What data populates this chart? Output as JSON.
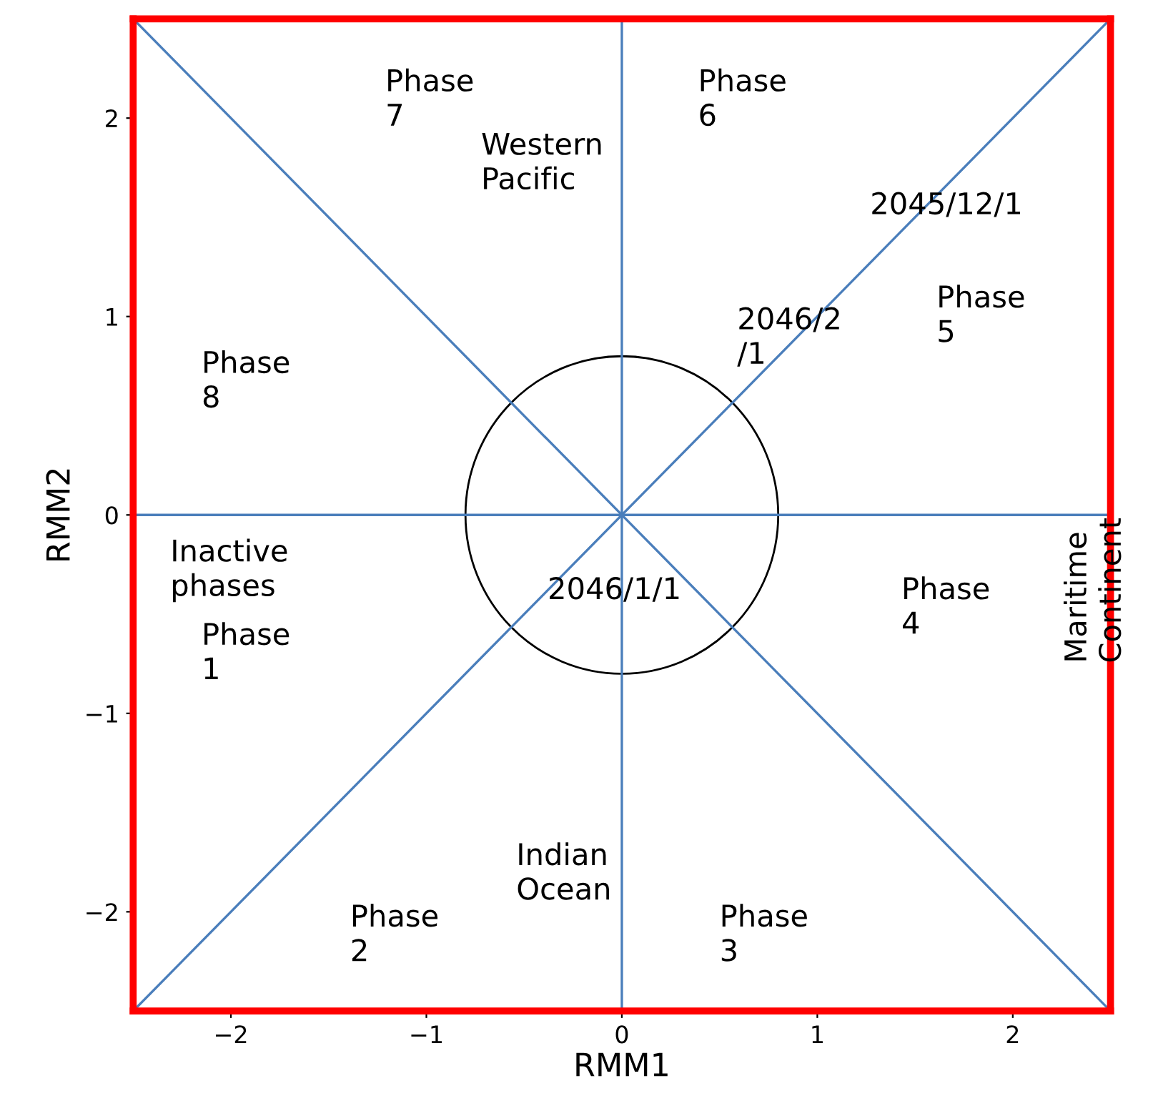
{
  "chart_data": {
    "type": "line",
    "xlabel": "RMM1",
    "ylabel": "RMM2",
    "xlim": [
      -2.5,
      2.5
    ],
    "ylim": [
      -2.5,
      2.5
    ],
    "xticks": [
      -2,
      -1,
      0,
      1,
      2
    ],
    "yticks": [
      -2,
      -1,
      0,
      1,
      2
    ],
    "grid": false,
    "legend": false,
    "marker": "none",
    "line_style": "solid",
    "series": [
      {
        "color": "#4a7ebb",
        "x": [
          0,
          0
        ],
        "values": [
          -2.5,
          2.5
        ]
      },
      {
        "color": "#4a7ebb",
        "x": [
          -2.5,
          2.5
        ],
        "values": [
          0,
          0
        ]
      },
      {
        "color": "#4a7ebb",
        "x": [
          -2.5,
          2.5
        ],
        "values": [
          -2.5,
          2.5
        ]
      },
      {
        "color": "#4a7ebb",
        "x": [
          -2.5,
          2.5
        ],
        "values": [
          2.5,
          -2.5
        ]
      }
    ],
    "annotations": [
      "Phase\n7",
      "Phase\n6",
      "Western\nPacific",
      "2045/12/1",
      "Phase\n5",
      "2046/2\n/1",
      "Phase\n8",
      "Inactive\nphases",
      "Phase\n1",
      "2046/1/1",
      "Phase\n4",
      "Maritime\nContinent",
      "Indian\nOcean",
      "Phase\n2",
      "Phase\n3"
    ]
  }
}
